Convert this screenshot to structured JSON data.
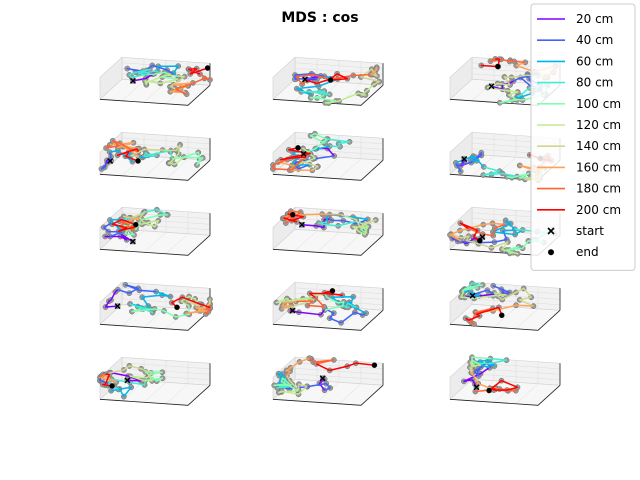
{
  "chart_data": {
    "type": "line",
    "title": "MDS : cos",
    "projection": "3d",
    "grid": true,
    "axis_tick_labels": false,
    "layout": {
      "rows": 5,
      "cols": 3,
      "panels": 15
    },
    "legend_placement": "top-right",
    "legend": [
      {
        "label": "20 cm",
        "color": "#8000ff",
        "kind": "line"
      },
      {
        "label": "40 cm",
        "color": "#4062fa",
        "kind": "line"
      },
      {
        "label": "60 cm",
        "color": "#00b5eb",
        "kind": "line"
      },
      {
        "label": "80 cm",
        "color": "#40ecd4",
        "kind": "line"
      },
      {
        "label": "100 cm",
        "color": "#80ffb4",
        "kind": "line"
      },
      {
        "label": "120 cm",
        "color": "#c0eb8d",
        "kind": "line"
      },
      {
        "label": "140 cm",
        "color": "#d2d690",
        "kind": "line"
      },
      {
        "label": "160 cm",
        "color": "#ffa256",
        "kind": "line"
      },
      {
        "label": "180 cm",
        "color": "#ff6232",
        "kind": "line"
      },
      {
        "label": "200 cm",
        "color": "#ff0000",
        "kind": "line"
      },
      {
        "label": "start",
        "color": "#000000",
        "kind": "marker-x"
      },
      {
        "label": "end",
        "color": "#000000",
        "kind": "marker-dot"
      }
    ]
  }
}
